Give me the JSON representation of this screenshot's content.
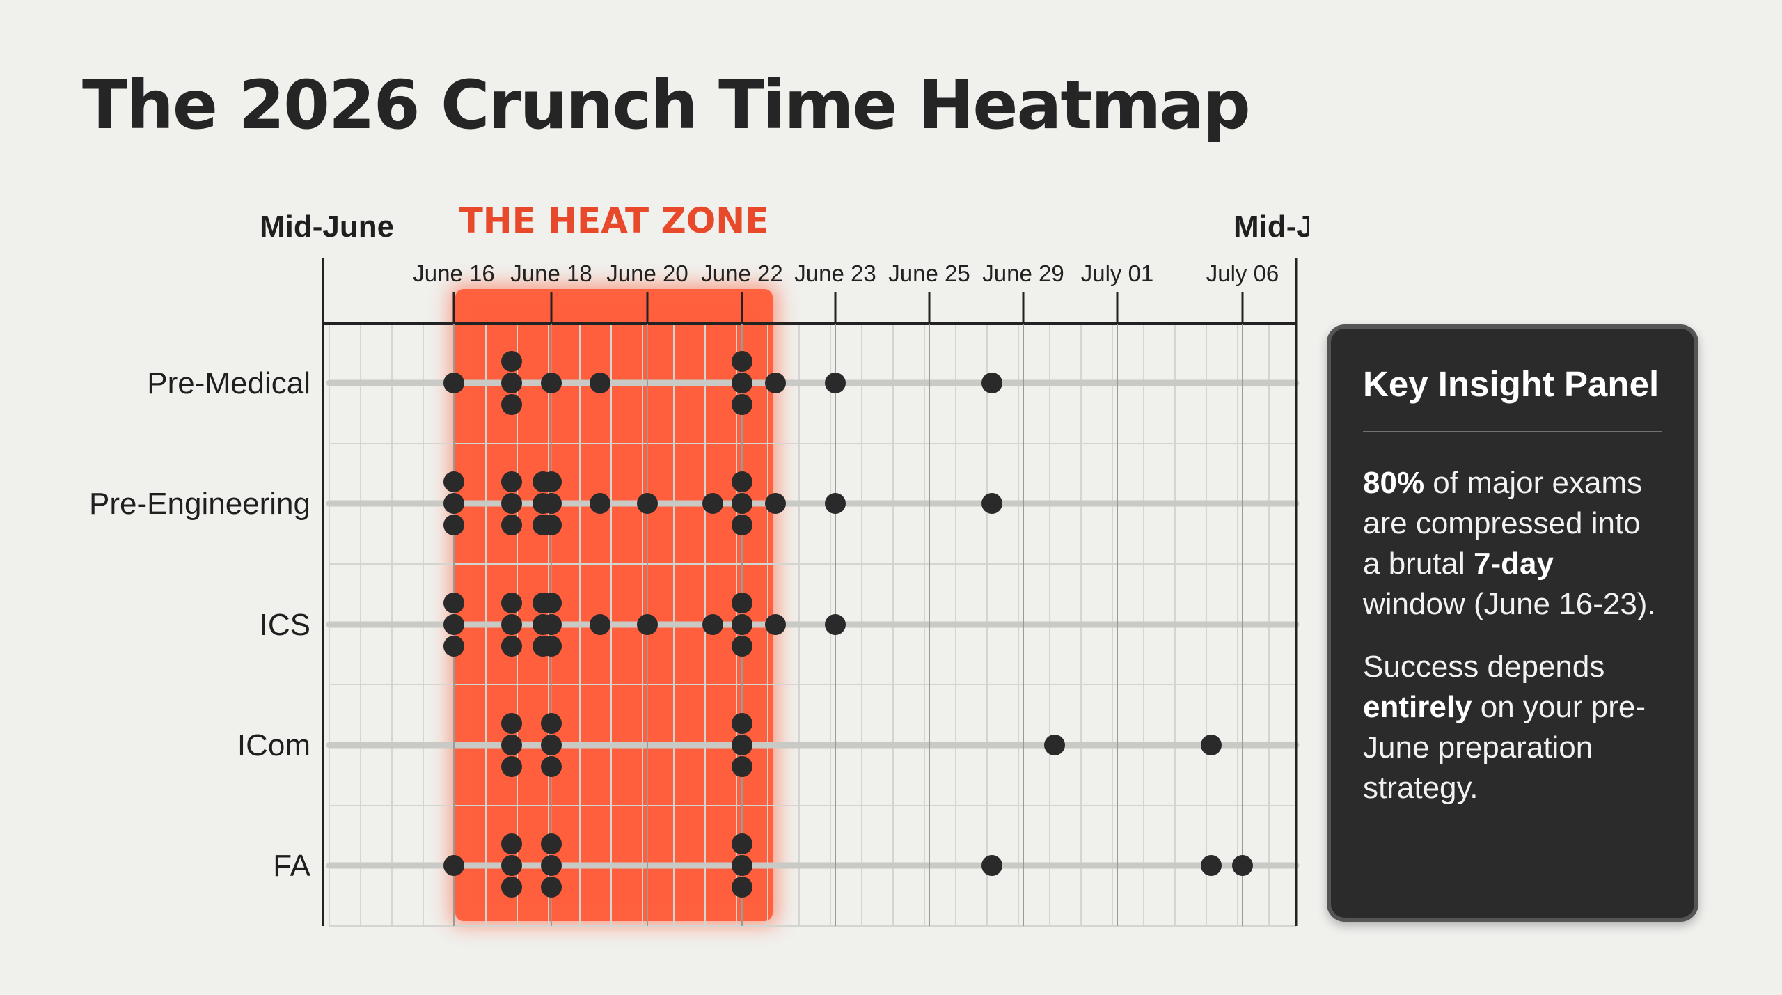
{
  "chart_data": {
    "type": "scatter",
    "title": "The 2026 Crunch Time Heatmap",
    "range_label_left": "Mid-June",
    "range_label_right": "Mid-July",
    "highlight": {
      "label": "THE HEAT ZONE",
      "from": "June 16",
      "to": "June 23",
      "color": "#ff5a36"
    },
    "x_ticks": [
      "June 16",
      "June 18",
      "June 20",
      "June 22",
      "June 23",
      "June 25",
      "June 29",
      "July 01",
      "July 06"
    ],
    "categories": [
      "Pre-Medical",
      "Pre-Engineering",
      "ICS",
      "ICom",
      "FA"
    ],
    "series": [
      {
        "category": "Pre-Medical",
        "points": [
          {
            "x": "June 16",
            "count": 1
          },
          {
            "x": "June 17",
            "count": 3
          },
          {
            "x": "June 18",
            "count": 1
          },
          {
            "x": "June 19",
            "count": 1
          },
          {
            "x": "June 22",
            "count": 3
          },
          {
            "x": "June 22",
            "count": 1
          },
          {
            "x": "June 23",
            "count": 1
          },
          {
            "x": "June 28",
            "count": 1
          }
        ]
      },
      {
        "category": "Pre-Engineering",
        "points": [
          {
            "x": "June 16",
            "count": 3
          },
          {
            "x": "June 17",
            "count": 3
          },
          {
            "x": "June 17",
            "count": 3
          },
          {
            "x": "June 18",
            "count": 3
          },
          {
            "x": "June 19",
            "count": 1
          },
          {
            "x": "June 20",
            "count": 1
          },
          {
            "x": "June 21",
            "count": 1
          },
          {
            "x": "June 22",
            "count": 3
          },
          {
            "x": "June 22",
            "count": 1
          },
          {
            "x": "June 23",
            "count": 1
          },
          {
            "x": "June 28",
            "count": 1
          }
        ]
      },
      {
        "category": "ICS",
        "points": [
          {
            "x": "June 16",
            "count": 3
          },
          {
            "x": "June 17",
            "count": 3
          },
          {
            "x": "June 17",
            "count": 3
          },
          {
            "x": "June 18",
            "count": 3
          },
          {
            "x": "June 19",
            "count": 1
          },
          {
            "x": "June 20",
            "count": 1
          },
          {
            "x": "June 21",
            "count": 1
          },
          {
            "x": "June 22",
            "count": 3
          },
          {
            "x": "June 22",
            "count": 1
          },
          {
            "x": "June 23",
            "count": 1
          }
        ]
      },
      {
        "category": "ICom",
        "points": [
          {
            "x": "June 17",
            "count": 3
          },
          {
            "x": "June 18",
            "count": 3
          },
          {
            "x": "June 22",
            "count": 3
          },
          {
            "x": "June 30",
            "count": 1
          },
          {
            "x": "July 05",
            "count": 1
          }
        ]
      },
      {
        "category": "FA",
        "points": [
          {
            "x": "June 16",
            "count": 1
          },
          {
            "x": "June 17",
            "count": 3
          },
          {
            "x": "June 18",
            "count": 3
          },
          {
            "x": "June 22",
            "count": 3
          },
          {
            "x": "June 28",
            "count": 1
          },
          {
            "x": "July 05",
            "count": 1
          },
          {
            "x": "July 06",
            "count": 1
          }
        ]
      }
    ],
    "grid": true,
    "colors": {
      "dot": "#2a2a2a",
      "row_line": "#c9c9c6",
      "grid": "#d4d4d0",
      "axis": "#222222",
      "heat": "#ff5a36",
      "heat_label": "#e8492a"
    }
  },
  "panel": {
    "title": "Key Insight Panel",
    "p1_bold1": "80%",
    "p1_text1": " of major exams are compressed into a brutal ",
    "p1_bold2": "7-day",
    "p1_text2": " window (June 16-23).",
    "p2_text1": "Success depends ",
    "p2_bold": "entirely",
    "p2_text2": " on your pre-June preparation strategy."
  }
}
